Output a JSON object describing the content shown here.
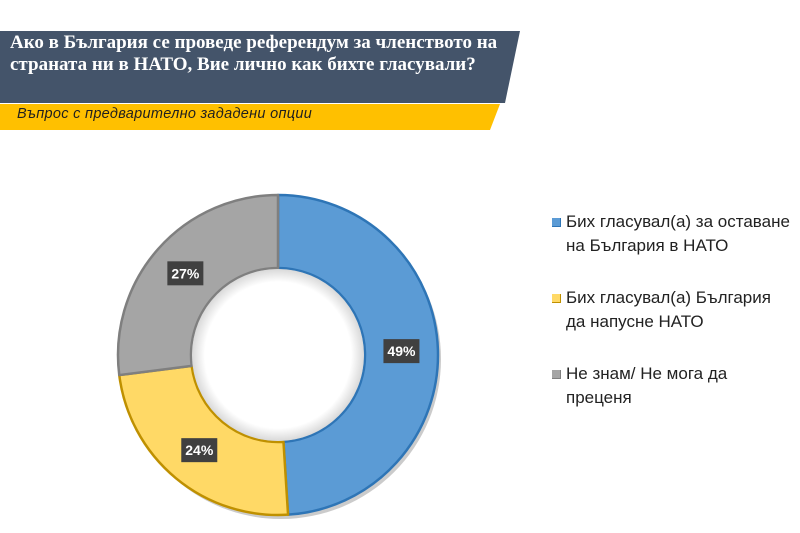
{
  "header": {
    "title": "Ако в България се проведе референдум за членството на страната ни в НАТО, Вие лично как бихте гласували?",
    "subtitle": "Въпрос с предварително зададени опции",
    "title_bg_color": "#44546a",
    "subtitle_bg_color": "#ffc000"
  },
  "chart_data": {
    "type": "pie",
    "donut": true,
    "legend_position": "right",
    "slices": [
      {
        "label": "Бих гласувал(а) за оставане на България в НАТО",
        "value": 49,
        "display": "49%",
        "color": "#5b9bd5"
      },
      {
        "label": "Бих гласувал(а) България да напусне НАТО",
        "value": 24,
        "display": "24%",
        "color": "#ffd966"
      },
      {
        "label": "Не знам/ Не мога да преценя",
        "value": 27,
        "display": "27%",
        "color": "#a5a5a5"
      }
    ]
  }
}
